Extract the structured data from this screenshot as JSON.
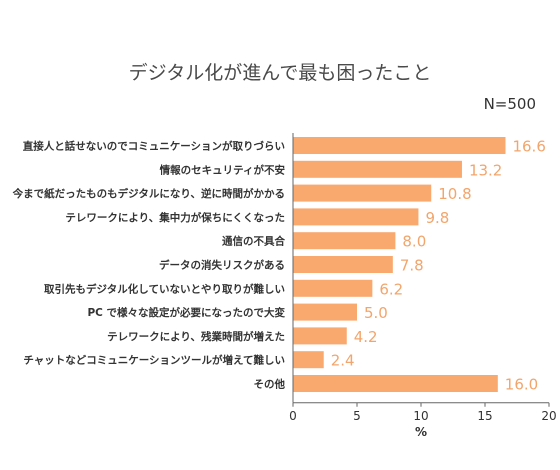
{
  "chart_data": {
    "type": "bar",
    "orientation": "horizontal",
    "title": "デジタル化が進んで最も困ったこと",
    "note": "N=500",
    "categories": [
      "直接人と話せないのでコミュニケーションが取りづらい",
      "情報のセキュリティが不安",
      "今まで紙だったものもデジタルになり、逆に時間がかかる",
      "テレワークにより、集中力が保ちにくくなった",
      "通信の不具合",
      "データの消失リスクがある",
      "取引先もデジタル化していないとやり取りが難しい",
      "PC で様々な設定が必要になったので大変",
      "テレワークにより、残業時間が増えた",
      "チャットなどコミュニケーションツールが増えて難しい",
      "その他"
    ],
    "values": [
      16.6,
      13.2,
      10.8,
      9.8,
      8.0,
      7.8,
      6.2,
      5.0,
      4.2,
      2.4,
      16.0
    ],
    "value_labels": [
      "16.6",
      "13.2",
      "10.8",
      "9.8",
      "8.0",
      "7.8",
      "6.2",
      "5.0",
      "4.2",
      "2.4",
      "16.0"
    ],
    "xlabel": "%",
    "xlim": [
      0,
      20
    ],
    "xticks": [
      0,
      5,
      10,
      15,
      20
    ],
    "grid": false,
    "colors": {
      "bar": "#f9a86e",
      "value_label": "#f2a56c"
    }
  }
}
